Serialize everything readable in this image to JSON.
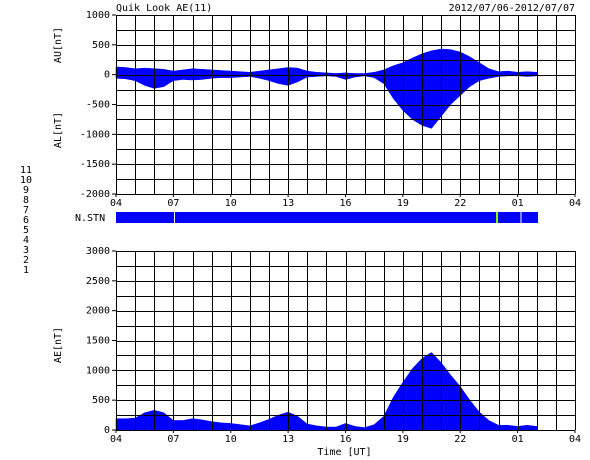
{
  "header": {
    "title": "Quik Look AE(11)",
    "date": "2012/07/06-2012/07/07"
  },
  "stations": {
    "label": "N.STN",
    "legend": [
      {
        "text": "11",
        "color": "#00e0e0"
      },
      {
        "text": "10",
        "color": "#ff00ff"
      },
      {
        "text": "9",
        "color": "#4040ff"
      },
      {
        "text": "8",
        "color": "#ffff00"
      },
      {
        "text": "7",
        "color": "#a0e020"
      },
      {
        "text": "6",
        "color": "#ff0000"
      },
      {
        "text": "5",
        "color": "#c0c0c0"
      },
      {
        "text": "4",
        "color": "#e0e0e0"
      },
      {
        "text": "3",
        "color": "#00a0a0"
      },
      {
        "text": "2",
        "color": "#a000a0"
      },
      {
        "text": "1",
        "color": "#0000ff"
      }
    ]
  },
  "chart_data": [
    {
      "type": "area",
      "y_labels": [
        "AU[nT]",
        "AL[nT]"
      ],
      "x": [
        0,
        0.5,
        1,
        1.5,
        2,
        2.5,
        3,
        3.5,
        4,
        4.5,
        5,
        5.5,
        6,
        6.5,
        7,
        7.5,
        8,
        8.5,
        9,
        9.5,
        10,
        10.5,
        11,
        11.5,
        12,
        12.5,
        13,
        13.5,
        14,
        14.5,
        15,
        15.5,
        16,
        16.5,
        17,
        17.5,
        18,
        18.5,
        19,
        19.5,
        20,
        20.5,
        21,
        21.5,
        22
      ],
      "xlim": [
        0,
        24
      ],
      "xticks": [
        {
          "value": 0,
          "label": "04"
        },
        {
          "value": 3,
          "label": "07"
        },
        {
          "value": 6,
          "label": "10"
        },
        {
          "value": 9,
          "label": "13"
        },
        {
          "value": 12,
          "label": "16"
        },
        {
          "value": 15,
          "label": "19"
        },
        {
          "value": 18,
          "label": "22"
        },
        {
          "value": 21,
          "label": "01"
        },
        {
          "value": 24,
          "label": "04"
        }
      ],
      "xgrid": [
        0,
        1,
        2,
        3,
        4,
        5,
        6,
        7,
        8,
        9,
        10,
        11,
        12,
        13,
        14,
        15,
        16,
        17,
        18,
        19,
        20,
        21,
        22,
        23,
        24
      ],
      "ylim": [
        -2000,
        1000
      ],
      "yticks": [
        -2000,
        -1500,
        -1000,
        -500,
        0,
        500,
        1000
      ],
      "ygrid": [
        -2000,
        -1750,
        -1500,
        -1250,
        -1000,
        -750,
        -500,
        -250,
        0,
        250,
        500,
        750,
        1000
      ],
      "series": [
        {
          "color": "#0000ff",
          "values": [
            130,
            120,
            100,
            110,
            100,
            90,
            60,
            80,
            100,
            90,
            80,
            70,
            60,
            50,
            40,
            60,
            80,
            100,
            120,
            110,
            60,
            40,
            30,
            20,
            30,
            20,
            20,
            40,
            80,
            150,
            200,
            280,
            350,
            400,
            430,
            420,
            380,
            300,
            200,
            100,
            50,
            60,
            40,
            50,
            40
          ]
        },
        {
          "color": "#0000ff",
          "values": [
            -60,
            -70,
            -100,
            -180,
            -230,
            -200,
            -100,
            -80,
            -90,
            -80,
            -60,
            -50,
            -50,
            -40,
            -30,
            -60,
            -100,
            -150,
            -180,
            -120,
            -40,
            -30,
            -20,
            -30,
            -80,
            -40,
            -20,
            -50,
            -150,
            -400,
            -600,
            -750,
            -850,
            -900,
            -700,
            -500,
            -350,
            -200,
            -100,
            -60,
            -30,
            -20,
            -20,
            -30,
            -20
          ]
        }
      ]
    },
    {
      "type": "area",
      "y_labels": [
        "AE[nT]"
      ],
      "x_label": "Time [UT]",
      "x": [
        0,
        0.5,
        1,
        1.5,
        2,
        2.5,
        3,
        3.5,
        4,
        4.5,
        5,
        5.5,
        6,
        6.5,
        7,
        7.5,
        8,
        8.5,
        9,
        9.5,
        10,
        10.5,
        11,
        11.5,
        12,
        12.5,
        13,
        13.5,
        14,
        14.5,
        15,
        15.5,
        16,
        16.5,
        17,
        17.5,
        18,
        18.5,
        19,
        19.5,
        20,
        20.5,
        21,
        21.5,
        22
      ],
      "xlim": [
        0,
        24
      ],
      "xticks": [
        {
          "value": 0,
          "label": "04"
        },
        {
          "value": 3,
          "label": "07"
        },
        {
          "value": 6,
          "label": "10"
        },
        {
          "value": 9,
          "label": "13"
        },
        {
          "value": 12,
          "label": "16"
        },
        {
          "value": 15,
          "label": "19"
        },
        {
          "value": 18,
          "label": "22"
        },
        {
          "value": 21,
          "label": "01"
        },
        {
          "value": 24,
          "label": "04"
        }
      ],
      "xgrid": [
        0,
        1,
        2,
        3,
        4,
        5,
        6,
        7,
        8,
        9,
        10,
        11,
        12,
        13,
        14,
        15,
        16,
        17,
        18,
        19,
        20,
        21,
        22,
        23,
        24
      ],
      "ylim": [
        0,
        3000
      ],
      "yticks": [
        0,
        500,
        1000,
        1500,
        2000,
        2500,
        3000
      ],
      "ygrid": [
        0,
        250,
        500,
        750,
        1000,
        1250,
        1500,
        1750,
        2000,
        2250,
        2500,
        2750,
        3000
      ],
      "series": [
        {
          "color": "#0000ff",
          "values": [
            190,
            190,
            200,
            290,
            330,
            290,
            160,
            160,
            190,
            170,
            140,
            120,
            110,
            90,
            70,
            120,
            180,
            250,
            300,
            230,
            100,
            70,
            50,
            50,
            110,
            60,
            40,
            90,
            230,
            550,
            800,
            1030,
            1200,
            1300,
            1130,
            920,
            730,
            500,
            300,
            160,
            80,
            80,
            60,
            80,
            60
          ]
        }
      ]
    }
  ]
}
